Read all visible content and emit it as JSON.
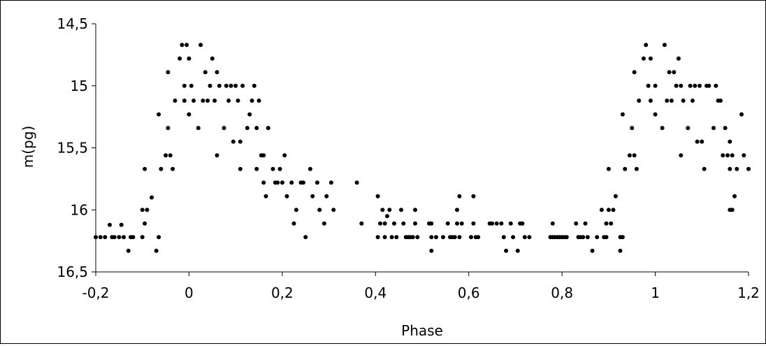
{
  "chart_data": {
    "type": "scatter",
    "title": "",
    "xlabel": "Phase",
    "ylabel": "m(pg)",
    "xlim": [
      -0.2,
      1.2
    ],
    "ylim": [
      14.5,
      16.5
    ],
    "y_inverted": true,
    "grid": false,
    "legend": "none",
    "x_ticks": [
      -0.2,
      0,
      0.2,
      0.4,
      0.6,
      0.8,
      1,
      1.2
    ],
    "x_tick_labels": [
      "-0,2",
      "0",
      "0,2",
      "0,4",
      "0,6",
      "0,8",
      "1",
      "1,2"
    ],
    "y_ticks": [
      14.5,
      15,
      15.5,
      16,
      16.5
    ],
    "y_tick_labels": [
      "14,5",
      "15",
      "15,5",
      "16",
      "16,5"
    ],
    "marker_color": "#000000",
    "series": [
      {
        "points": [
          [
            -0.2,
            16.22
          ],
          [
            -0.19,
            16.22
          ],
          [
            -0.18,
            16.22
          ],
          [
            -0.17,
            16.12
          ],
          [
            -0.165,
            16.22
          ],
          [
            -0.16,
            16.22
          ],
          [
            -0.15,
            16.22
          ],
          [
            -0.145,
            16.12
          ],
          [
            -0.14,
            16.22
          ],
          [
            -0.13,
            16.33
          ],
          [
            -0.125,
            16.22
          ],
          [
            -0.12,
            16.22
          ],
          [
            -0.1,
            16.22
          ],
          [
            -0.1,
            16.0
          ],
          [
            -0.095,
            16.11
          ],
          [
            -0.095,
            15.67
          ],
          [
            -0.09,
            16.0
          ],
          [
            -0.08,
            15.9
          ],
          [
            -0.07,
            16.33
          ],
          [
            -0.065,
            16.22
          ],
          [
            -0.065,
            15.23
          ],
          [
            -0.06,
            15.67
          ],
          [
            -0.05,
            15.56
          ],
          [
            -0.045,
            15.34
          ],
          [
            -0.04,
            15.56
          ],
          [
            -0.035,
            15.67
          ],
          [
            -0.03,
            15.12
          ],
          [
            -0.045,
            14.89
          ],
          [
            -0.02,
            14.78
          ],
          [
            -0.015,
            14.67
          ],
          [
            -0.01,
            15.0
          ],
          [
            -0.005,
            14.67
          ],
          [
            -0.01,
            15.12
          ],
          [
            0.0,
            15.23
          ],
          [
            0.0,
            14.78
          ],
          [
            0.005,
            15.0
          ],
          [
            0.01,
            15.12
          ],
          [
            0.02,
            15.34
          ],
          [
            0.025,
            14.67
          ],
          [
            0.03,
            15.12
          ],
          [
            0.035,
            14.89
          ],
          [
            0.04,
            15.12
          ],
          [
            0.045,
            15.0
          ],
          [
            0.05,
            14.78
          ],
          [
            0.055,
            15.12
          ],
          [
            0.06,
            14.89
          ],
          [
            0.065,
            15.0
          ],
          [
            0.06,
            15.56
          ],
          [
            0.075,
            15.34
          ],
          [
            0.08,
            15.0
          ],
          [
            0.085,
            15.12
          ],
          [
            0.09,
            15.0
          ],
          [
            0.095,
            15.45
          ],
          [
            0.1,
            15.0
          ],
          [
            0.105,
            15.12
          ],
          [
            0.11,
            15.45
          ],
          [
            0.11,
            15.67
          ],
          [
            0.115,
            15.0
          ],
          [
            0.125,
            15.34
          ],
          [
            0.13,
            15.23
          ],
          [
            0.135,
            15.12
          ],
          [
            0.14,
            15.0
          ],
          [
            0.145,
            15.67
          ],
          [
            0.145,
            15.34
          ],
          [
            0.15,
            15.12
          ],
          [
            0.155,
            15.56
          ],
          [
            0.16,
            15.56
          ],
          [
            0.16,
            15.78
          ],
          [
            0.165,
            15.89
          ],
          [
            0.17,
            15.34
          ],
          [
            0.18,
            15.67
          ],
          [
            0.185,
            15.78
          ],
          [
            0.19,
            15.78
          ],
          [
            0.195,
            15.67
          ],
          [
            0.2,
            15.78
          ],
          [
            0.205,
            15.56
          ],
          [
            0.21,
            15.89
          ],
          [
            0.22,
            15.78
          ],
          [
            0.225,
            16.11
          ],
          [
            0.23,
            16.0
          ],
          [
            0.24,
            15.78
          ],
          [
            0.245,
            15.78
          ],
          [
            0.25,
            16.22
          ],
          [
            0.26,
            15.67
          ],
          [
            0.265,
            15.89
          ],
          [
            0.275,
            15.78
          ],
          [
            0.28,
            16.0
          ],
          [
            0.29,
            16.11
          ],
          [
            0.295,
            15.89
          ],
          [
            0.305,
            15.78
          ],
          [
            0.31,
            16.0
          ],
          [
            0.36,
            15.78
          ],
          [
            0.37,
            16.11
          ],
          [
            0.405,
            16.22
          ],
          [
            0.405,
            15.89
          ],
          [
            0.41,
            16.11
          ],
          [
            0.415,
            16.0
          ],
          [
            0.42,
            16.11
          ],
          [
            0.42,
            16.22
          ],
          [
            0.425,
            16.05
          ],
          [
            0.43,
            16.0
          ],
          [
            0.435,
            16.22
          ],
          [
            0.44,
            16.11
          ],
          [
            0.445,
            16.22
          ],
          [
            0.455,
            16.0
          ],
          [
            0.46,
            16.11
          ],
          [
            0.465,
            16.22
          ],
          [
            0.47,
            16.22
          ],
          [
            0.475,
            16.22
          ],
          [
            0.48,
            16.22
          ],
          [
            0.485,
            16.11
          ],
          [
            0.49,
            16.22
          ],
          [
            0.485,
            16.0
          ],
          [
            0.515,
            16.11
          ],
          [
            0.52,
            16.22
          ],
          [
            0.52,
            16.11
          ],
          [
            0.53,
            16.22
          ],
          [
            0.52,
            16.33
          ],
          [
            0.545,
            16.22
          ],
          [
            0.555,
            16.11
          ],
          [
            0.56,
            16.22
          ],
          [
            0.565,
            16.22
          ],
          [
            0.57,
            16.22
          ],
          [
            0.575,
            16.0
          ],
          [
            0.575,
            16.11
          ],
          [
            0.58,
            16.22
          ],
          [
            0.585,
            16.11
          ],
          [
            0.58,
            15.89
          ],
          [
            0.605,
            16.22
          ],
          [
            0.61,
            15.89
          ],
          [
            0.61,
            16.11
          ],
          [
            0.615,
            16.22
          ],
          [
            0.62,
            16.22
          ],
          [
            0.645,
            16.11
          ],
          [
            0.65,
            16.11
          ],
          [
            0.66,
            16.11
          ],
          [
            0.67,
            16.11
          ],
          [
            0.675,
            16.22
          ],
          [
            0.68,
            16.33
          ],
          [
            0.69,
            16.11
          ],
          [
            0.695,
            16.22
          ],
          [
            0.71,
            16.11
          ],
          [
            0.715,
            16.11
          ],
          [
            0.72,
            16.22
          ],
          [
            0.73,
            16.22
          ],
          [
            0.705,
            16.33
          ],
          [
            0.775,
            16.22
          ],
          [
            0.78,
            16.22
          ],
          [
            0.785,
            16.22
          ],
          [
            0.79,
            16.22
          ],
          [
            0.795,
            16.22
          ],
          [
            0.8,
            16.22
          ],
          [
            0.805,
            16.22
          ],
          [
            0.81,
            16.22
          ],
          [
            0.78,
            16.11
          ],
          [
            0.83,
            16.11
          ],
          [
            0.835,
            16.22
          ],
          [
            0.84,
            16.22
          ],
          [
            0.845,
            16.22
          ],
          [
            0.85,
            16.11
          ],
          [
            0.855,
            16.22
          ],
          [
            0.865,
            16.33
          ],
          [
            0.875,
            16.22
          ],
          [
            0.885,
            16.0
          ],
          [
            0.89,
            16.22
          ],
          [
            0.895,
            16.11
          ],
          [
            0.895,
            16.22
          ],
          [
            0.9,
            16.0
          ],
          [
            0.9,
            15.67
          ],
          [
            0.905,
            16.11
          ],
          [
            0.91,
            16.0
          ],
          [
            0.915,
            15.89
          ],
          [
            0.925,
            16.22
          ],
          [
            0.925,
            16.33
          ],
          [
            0.93,
            16.22
          ],
          [
            0.93,
            15.23
          ],
          [
            0.935,
            15.67
          ],
          [
            0.945,
            15.56
          ],
          [
            0.95,
            15.34
          ],
          [
            0.955,
            15.56
          ],
          [
            0.96,
            15.67
          ],
          [
            0.965,
            15.12
          ],
          [
            0.955,
            14.89
          ],
          [
            0.975,
            14.78
          ],
          [
            0.98,
            14.67
          ],
          [
            0.985,
            15.0
          ],
          [
            0.99,
            14.78
          ],
          [
            0.99,
            15.12
          ],
          [
            1.0,
            15.23
          ],
          [
            1.0,
            15.0
          ],
          [
            1.015,
            15.34
          ],
          [
            1.02,
            14.67
          ],
          [
            1.025,
            15.12
          ],
          [
            1.03,
            14.89
          ],
          [
            1.035,
            15.12
          ],
          [
            1.04,
            14.89
          ],
          [
            1.045,
            15.0
          ],
          [
            1.05,
            14.78
          ],
          [
            1.055,
            15.0
          ],
          [
            1.06,
            15.12
          ],
          [
            1.055,
            15.56
          ],
          [
            1.07,
            15.34
          ],
          [
            1.075,
            15.0
          ],
          [
            1.08,
            15.12
          ],
          [
            1.085,
            15.0
          ],
          [
            1.09,
            15.45
          ],
          [
            1.095,
            15.0
          ],
          [
            1.1,
            15.45
          ],
          [
            1.105,
            15.67
          ],
          [
            1.11,
            15.0
          ],
          [
            1.115,
            15.0
          ],
          [
            1.125,
            15.34
          ],
          [
            1.13,
            15.0
          ],
          [
            1.135,
            15.12
          ],
          [
            1.14,
            15.12
          ],
          [
            1.145,
            15.56
          ],
          [
            1.15,
            15.34
          ],
          [
            1.155,
            15.56
          ],
          [
            1.16,
            15.45
          ],
          [
            1.16,
            15.67
          ],
          [
            1.165,
            15.56
          ],
          [
            1.16,
            16.0
          ],
          [
            1.165,
            16.0
          ],
          [
            1.17,
            15.89
          ],
          [
            1.175,
            15.67
          ],
          [
            1.185,
            15.23
          ],
          [
            1.19,
            15.56
          ],
          [
            1.2,
            15.67
          ]
        ]
      }
    ]
  }
}
